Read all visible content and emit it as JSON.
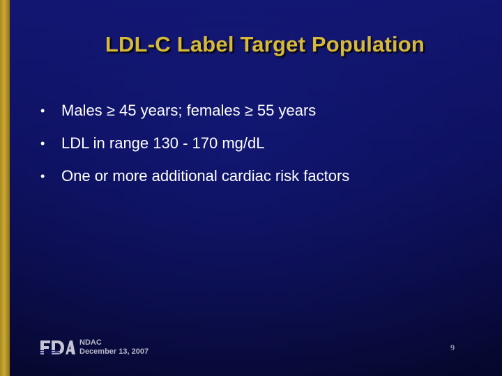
{
  "slide": {
    "title": "LDL-C Label Target Population",
    "bullets": [
      {
        "marker": "•",
        "text": "Males ≥ 45 years; females ≥ 55  years"
      },
      {
        "marker": "•",
        "text": "LDL in range 130 - 170 mg/dL"
      },
      {
        "marker": "•",
        "text": "One or more additional cardiac risk factors"
      }
    ],
    "footer": {
      "logo_text": "FDA",
      "line1": "NDAC",
      "line2": "December 13, 2007"
    },
    "page_number": "9"
  },
  "colors": {
    "title": "#d7b93a",
    "background": "#0d0f5a",
    "accent_bar": "#c9a836",
    "text": "#ffffff"
  }
}
